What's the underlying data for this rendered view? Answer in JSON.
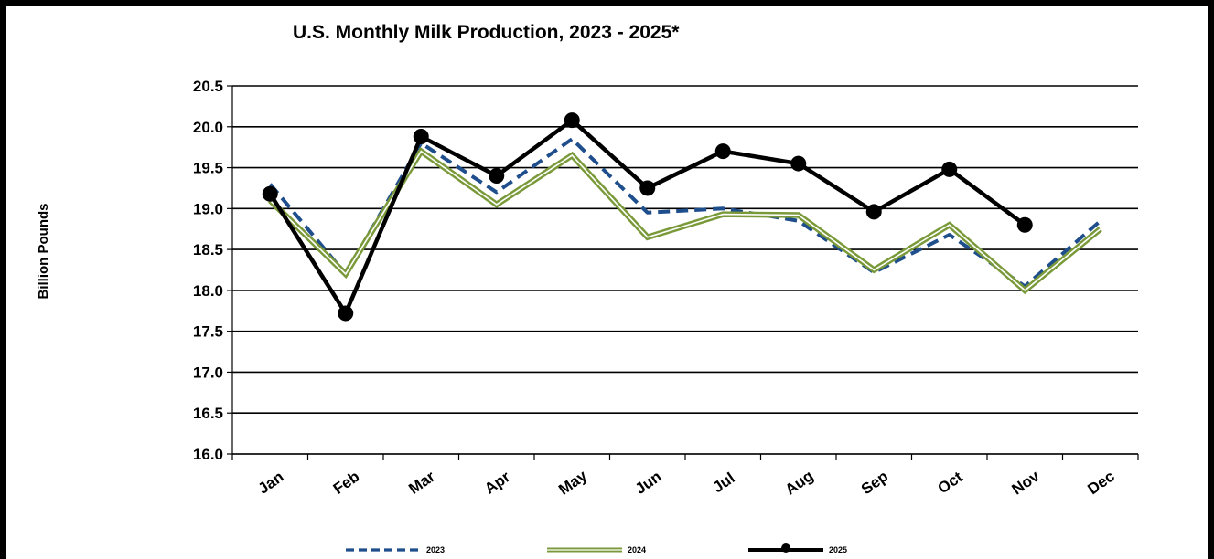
{
  "chart_data": {
    "type": "line",
    "title": "U.S. Monthly Milk Production, 2023 - 2025*",
    "xlabel": "",
    "ylabel": "Billion Pounds",
    "ylim": [
      16.0,
      20.5
    ],
    "yticks": [
      "16.0",
      "16.5",
      "17.0",
      "17.5",
      "18.0",
      "18.5",
      "19.0",
      "19.5",
      "20.0",
      "20.5"
    ],
    "grid": true,
    "legend_position": "bottom",
    "categories": [
      "Jan",
      "Feb",
      "Mar",
      "Apr",
      "May",
      "Jun",
      "Jul",
      "Aug",
      "Sep",
      "Oct",
      "Nov",
      "Dec"
    ],
    "series": [
      {
        "name": "2023",
        "color": "#1f4e8c",
        "style": "dashed",
        "values": [
          19.3,
          18.2,
          19.8,
          19.2,
          19.85,
          18.95,
          19.0,
          18.85,
          18.22,
          18.68,
          18.05,
          18.85
        ]
      },
      {
        "name": "2024",
        "color": "#7a9a3a",
        "style": "double",
        "values": [
          19.1,
          18.2,
          19.7,
          19.05,
          19.65,
          18.65,
          18.93,
          18.92,
          18.25,
          18.8,
          18.0,
          18.75
        ]
      },
      {
        "name": "2025",
        "color": "#000000",
        "style": "solid-markers",
        "values": [
          19.18,
          17.72,
          19.88,
          19.4,
          20.08,
          19.25,
          19.7,
          19.55,
          18.96,
          19.48,
          18.8,
          null
        ]
      }
    ]
  }
}
